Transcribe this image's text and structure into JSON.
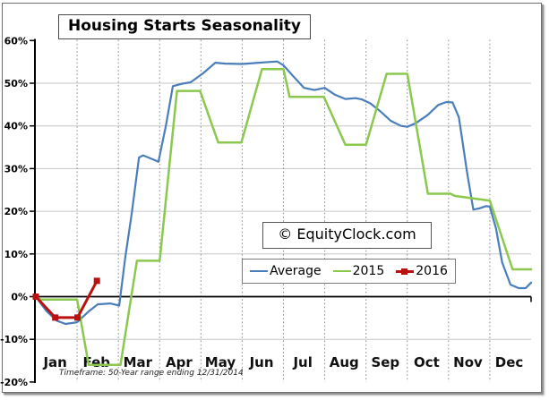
{
  "chart_data": {
    "type": "line",
    "title": "Housing Starts Seasonality",
    "watermark": "© EquityClock.com",
    "footnote": "Timeframe: 50-Year range ending 12/31/2014",
    "grid": true,
    "legend_position": "inside-bottom-center",
    "x_axis": {
      "months": [
        "Jan",
        "Feb",
        "Mar",
        "Apr",
        "May",
        "Jun",
        "Jul",
        "Aug",
        "Sep",
        "Oct",
        "Nov",
        "Dec"
      ]
    },
    "y_axis": {
      "min": -20,
      "max": 60,
      "step": 10,
      "tick_suffix": "%",
      "ticks": [
        {
          "value": 60,
          "label": "60%"
        },
        {
          "value": 50,
          "label": "50%"
        },
        {
          "value": 40,
          "label": "40%"
        },
        {
          "value": 30,
          "label": "30%"
        },
        {
          "value": 20,
          "label": "20%"
        },
        {
          "value": 10,
          "label": "10%"
        },
        {
          "value": 0,
          "label": "0%"
        },
        {
          "value": -10,
          "label": "-10%"
        },
        {
          "value": -20,
          "label": "-20%"
        }
      ]
    },
    "series": [
      {
        "name": "Average",
        "color": "#4a7ebb",
        "style": "smooth-line",
        "stroke_width": 2.2,
        "markers": false,
        "points": [
          [
            0.0,
            0.0
          ],
          [
            0.25,
            -3.3
          ],
          [
            0.5,
            -5.6
          ],
          [
            0.72,
            -6.4
          ],
          [
            1.0,
            -6.0
          ],
          [
            1.3,
            -3.3
          ],
          [
            1.5,
            -1.8
          ],
          [
            1.8,
            -1.6
          ],
          [
            2.02,
            -2.1
          ],
          [
            2.17,
            9.4
          ],
          [
            2.32,
            19.2
          ],
          [
            2.5,
            32.6
          ],
          [
            2.6,
            33.1
          ],
          [
            2.8,
            32.3
          ],
          [
            2.97,
            31.6
          ],
          [
            3.15,
            40.0
          ],
          [
            3.32,
            49.3
          ],
          [
            3.55,
            49.9
          ],
          [
            3.75,
            50.2
          ],
          [
            4.05,
            52.3
          ],
          [
            4.35,
            54.8
          ],
          [
            4.6,
            54.6
          ],
          [
            5.0,
            54.5
          ],
          [
            5.4,
            54.8
          ],
          [
            5.85,
            55.1
          ],
          [
            6.0,
            54.2
          ],
          [
            6.25,
            51.5
          ],
          [
            6.5,
            48.9
          ],
          [
            6.75,
            48.4
          ],
          [
            7.0,
            48.9
          ],
          [
            7.25,
            47.3
          ],
          [
            7.5,
            46.3
          ],
          [
            7.75,
            46.5
          ],
          [
            7.9,
            46.2
          ],
          [
            8.1,
            45.3
          ],
          [
            8.35,
            43.4
          ],
          [
            8.6,
            41.2
          ],
          [
            8.85,
            40.0
          ],
          [
            9.0,
            39.8
          ],
          [
            9.2,
            40.6
          ],
          [
            9.5,
            42.6
          ],
          [
            9.75,
            44.9
          ],
          [
            9.95,
            45.6
          ],
          [
            10.1,
            45.5
          ],
          [
            10.25,
            42.0
          ],
          [
            10.45,
            29.0
          ],
          [
            10.6,
            20.4
          ],
          [
            10.75,
            20.7
          ],
          [
            10.9,
            21.2
          ],
          [
            11.0,
            21.1
          ],
          [
            11.15,
            16.0
          ],
          [
            11.3,
            8.0
          ],
          [
            11.5,
            2.8
          ],
          [
            11.7,
            2.0
          ],
          [
            11.87,
            2.0
          ],
          [
            12.0,
            3.3
          ]
        ]
      },
      {
        "name": "2015",
        "color": "#8bc84e",
        "style": "step-line",
        "stroke_width": 2.5,
        "markers": false,
        "monthly_values": [
          -0.7,
          -16.0,
          8.4,
          48.2,
          36.1,
          53.3,
          46.8,
          35.6,
          52.2,
          24.1,
          22.5,
          6.4
        ],
        "points": [
          [
            0.0,
            0.0
          ],
          [
            0.12,
            -0.7
          ],
          [
            1.0,
            -0.7
          ],
          [
            1.28,
            -16.0
          ],
          [
            2.05,
            -16.0
          ],
          [
            2.45,
            8.4
          ],
          [
            3.0,
            8.4
          ],
          [
            3.42,
            48.2
          ],
          [
            3.98,
            48.2
          ],
          [
            4.42,
            36.1
          ],
          [
            4.98,
            36.1
          ],
          [
            5.48,
            53.3
          ],
          [
            6.0,
            53.3
          ],
          [
            6.15,
            46.8
          ],
          [
            6.98,
            46.8
          ],
          [
            7.5,
            35.6
          ],
          [
            8.0,
            35.6
          ],
          [
            8.5,
            52.2
          ],
          [
            9.0,
            52.2
          ],
          [
            9.5,
            24.1
          ],
          [
            10.05,
            24.1
          ],
          [
            10.15,
            23.6
          ],
          [
            11.0,
            22.5
          ],
          [
            11.55,
            6.4
          ],
          [
            12.0,
            6.4
          ]
        ]
      },
      {
        "name": "2016",
        "color": "#b91110",
        "style": "line-with-square-markers",
        "stroke_width": 3,
        "markers": true,
        "points": [
          [
            0.0,
            0.0
          ],
          [
            0.47,
            -4.9
          ],
          [
            1.01,
            -4.9
          ],
          [
            1.48,
            3.7
          ]
        ]
      }
    ]
  }
}
